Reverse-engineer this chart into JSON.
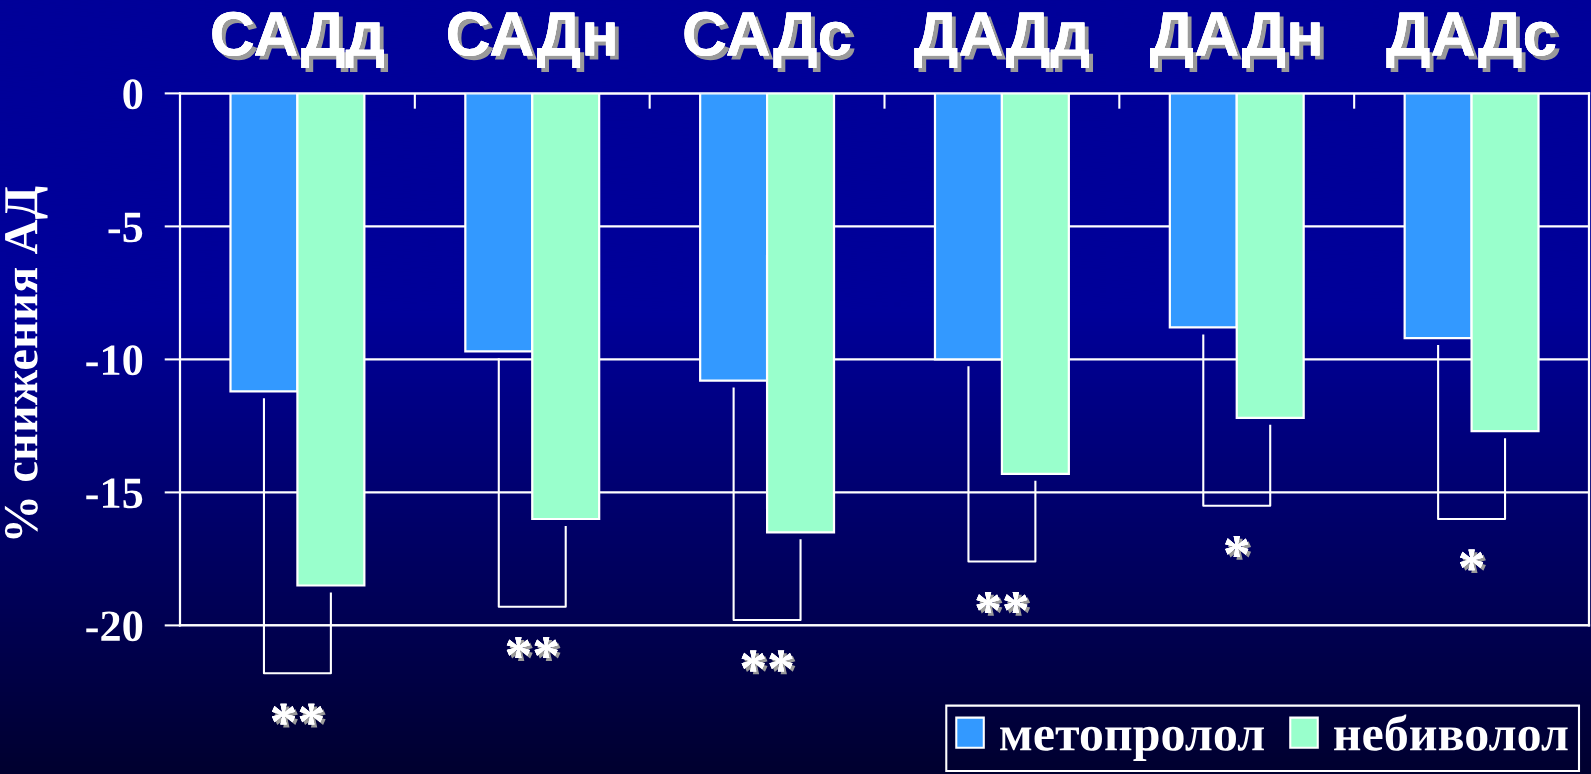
{
  "chart_data": {
    "type": "bar",
    "categories": [
      "САДд",
      "САДн",
      "САДс",
      "ДАДд",
      "ДАДн",
      "ДАДс"
    ],
    "ylabel": "% снижения АД",
    "series": [
      {
        "name": "метопролол",
        "color": "#3399ff",
        "values": [
          -11.2,
          -9.7,
          -10.8,
          -10.0,
          -8.8,
          -9.2
        ]
      },
      {
        "name": "небиволол",
        "color": "#99ffcc",
        "values": [
          -18.5,
          -16.0,
          -16.5,
          -14.3,
          -12.2,
          -12.7
        ]
      }
    ],
    "ylim": [
      -20,
      0
    ],
    "yticks": [
      0,
      -5,
      -10,
      -15,
      -20
    ],
    "grid": "y",
    "legend": "bottom right",
    "annotations": [
      "**",
      "**",
      "**",
      "**",
      "*",
      "*"
    ]
  }
}
